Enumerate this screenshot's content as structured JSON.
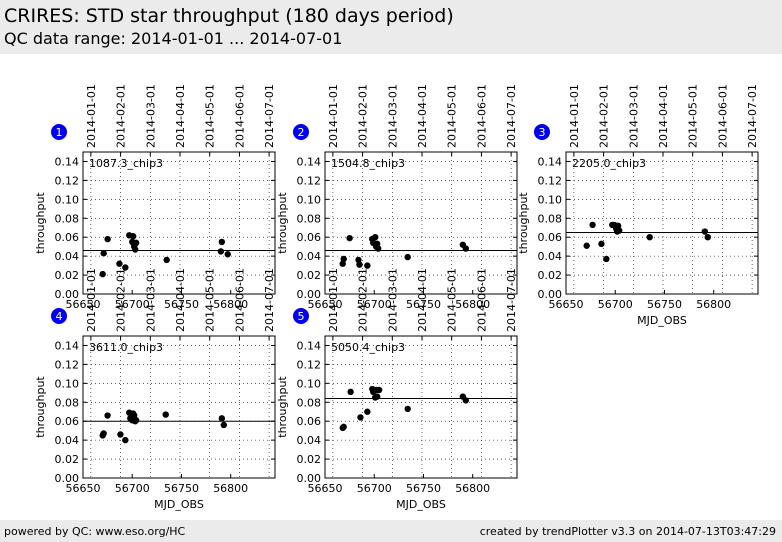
{
  "header": {
    "title": "CRIRES: STD star throughput (180 days period)",
    "subtitle": "QC data range: 2014-01-01 ... 2014-07-01"
  },
  "footer": {
    "left": "powered by QC: www.eso.org/HC",
    "right": "created by trendPlotter v3.3 on 2014-07-13T03:47:29"
  },
  "colors": {
    "header_bg": "#ebebeb",
    "badge": "#0000ee",
    "points": "#000000"
  },
  "chart_data": [
    {
      "type": "scatter",
      "badge": "1",
      "label": "1087.3_chip3",
      "xlabel": "",
      "ylabel": "throughput",
      "xlim": [
        56650,
        56845
      ],
      "ylim": [
        0,
        0.15
      ],
      "reference": 0.046,
      "xticks": [
        56650,
        56700,
        56750,
        56800
      ],
      "yticks": [
        "0.00",
        "0.02",
        "0.04",
        "0.06",
        "0.08",
        "0.10",
        "0.12",
        "0.14"
      ],
      "date_ticks": [
        "2014-01-01",
        "2014-02-01",
        "2014-03-01",
        "2014-04-01",
        "2014-05-01",
        "2014-06-01",
        "2014-07-01"
      ],
      "points": [
        [
          56670,
          0.021
        ],
        [
          56671,
          0.043
        ],
        [
          56675,
          0.058
        ],
        [
          56687,
          0.032
        ],
        [
          56693,
          0.028
        ],
        [
          56697,
          0.062
        ],
        [
          56700,
          0.055
        ],
        [
          56701,
          0.061
        ],
        [
          56702,
          0.05
        ],
        [
          56703,
          0.047
        ],
        [
          56704,
          0.054
        ],
        [
          56735,
          0.036
        ],
        [
          56790,
          0.045
        ],
        [
          56791,
          0.055
        ],
        [
          56797,
          0.042
        ]
      ]
    },
    {
      "type": "scatter",
      "badge": "2",
      "label": "1504.8_chip3",
      "xlabel": "",
      "ylabel": "throughput",
      "xlim": [
        56650,
        56845
      ],
      "ylim": [
        0,
        0.15
      ],
      "reference": 0.046,
      "xticks": [
        56650,
        56700,
        56750,
        56800
      ],
      "yticks": [
        "0.00",
        "0.02",
        "0.04",
        "0.06",
        "0.08",
        "0.10",
        "0.12",
        "0.14"
      ],
      "date_ticks": [
        "2014-01-01",
        "2014-02-01",
        "2014-03-01",
        "2014-04-01",
        "2014-05-01",
        "2014-06-01",
        "2014-07-01"
      ],
      "points": [
        [
          56668,
          0.032
        ],
        [
          56669,
          0.037
        ],
        [
          56675,
          0.059
        ],
        [
          56684,
          0.036
        ],
        [
          56685,
          0.031
        ],
        [
          56693,
          0.03
        ],
        [
          56698,
          0.058
        ],
        [
          56699,
          0.054
        ],
        [
          56701,
          0.06
        ],
        [
          56702,
          0.05
        ],
        [
          56703,
          0.053
        ],
        [
          56704,
          0.048
        ],
        [
          56734,
          0.039
        ],
        [
          56790,
          0.052
        ],
        [
          56793,
          0.048
        ]
      ]
    },
    {
      "type": "scatter",
      "badge": "3",
      "label": "2205.0_chip3",
      "xlabel": "MJD_OBS",
      "ylabel": "throughput",
      "xlim": [
        56650,
        56845
      ],
      "ylim": [
        0,
        0.15
      ],
      "reference": 0.065,
      "xticks": [
        56650,
        56700,
        56750,
        56800
      ],
      "yticks": [
        "0.00",
        "0.02",
        "0.04",
        "0.06",
        "0.08",
        "0.10",
        "0.12",
        "0.14"
      ],
      "date_ticks": [
        "2014-01-01",
        "2014-02-01",
        "2014-03-01",
        "2014-04-01",
        "2014-05-01",
        "2014-06-01",
        "2014-07-01"
      ],
      "points": [
        [
          56671,
          0.051
        ],
        [
          56677,
          0.073
        ],
        [
          56686,
          0.053
        ],
        [
          56691,
          0.037
        ],
        [
          56697,
          0.073
        ],
        [
          56699,
          0.073
        ],
        [
          56701,
          0.069
        ],
        [
          56702,
          0.066
        ],
        [
          56703,
          0.072
        ],
        [
          56704,
          0.067
        ],
        [
          56735,
          0.06
        ],
        [
          56791,
          0.066
        ],
        [
          56794,
          0.06
        ]
      ]
    },
    {
      "type": "scatter",
      "badge": "4",
      "label": "3611.0_chip3",
      "xlabel": "MJD_OBS",
      "ylabel": "throughput",
      "xlim": [
        56650,
        56845
      ],
      "ylim": [
        0,
        0.15
      ],
      "reference": 0.06,
      "xticks": [
        56650,
        56700,
        56750,
        56800
      ],
      "yticks": [
        "0.00",
        "0.02",
        "0.04",
        "0.06",
        "0.08",
        "0.10",
        "0.12",
        "0.14"
      ],
      "date_ticks": [
        "2014-01-01",
        "2014-02-01",
        "2014-03-01",
        "2014-04-01",
        "2014-05-01",
        "2014-06-01",
        "2014-07-01"
      ],
      "points": [
        [
          56670,
          0.045
        ],
        [
          56671,
          0.047
        ],
        [
          56675,
          0.066
        ],
        [
          56688,
          0.046
        ],
        [
          56693,
          0.04
        ],
        [
          56697,
          0.069
        ],
        [
          56698,
          0.063
        ],
        [
          56700,
          0.061
        ],
        [
          56701,
          0.068
        ],
        [
          56702,
          0.066
        ],
        [
          56703,
          0.06
        ],
        [
          56704,
          0.061
        ],
        [
          56734,
          0.067
        ],
        [
          56791,
          0.063
        ],
        [
          56793,
          0.056
        ]
      ]
    },
    {
      "type": "scatter",
      "badge": "5",
      "label": "5050.4_chip3",
      "xlabel": "MJD_OBS",
      "ylabel": "throughput",
      "xlim": [
        56650,
        56845
      ],
      "ylim": [
        0,
        0.15
      ],
      "reference": 0.084,
      "xticks": [
        56650,
        56700,
        56750,
        56800
      ],
      "yticks": [
        "0.00",
        "0.02",
        "0.04",
        "0.06",
        "0.08",
        "0.10",
        "0.12",
        "0.14"
      ],
      "date_ticks": [
        "2014-01-01",
        "2014-02-01",
        "2014-03-01",
        "2014-04-01",
        "2014-05-01",
        "2014-06-01",
        "2014-07-01"
      ],
      "points": [
        [
          56668,
          0.053
        ],
        [
          56669,
          0.054
        ],
        [
          56676,
          0.091
        ],
        [
          56686,
          0.064
        ],
        [
          56693,
          0.07
        ],
        [
          56698,
          0.094
        ],
        [
          56699,
          0.091
        ],
        [
          56701,
          0.085
        ],
        [
          56702,
          0.093
        ],
        [
          56703,
          0.086
        ],
        [
          56705,
          0.093
        ],
        [
          56734,
          0.073
        ],
        [
          56790,
          0.086
        ],
        [
          56793,
          0.082
        ]
      ]
    }
  ]
}
